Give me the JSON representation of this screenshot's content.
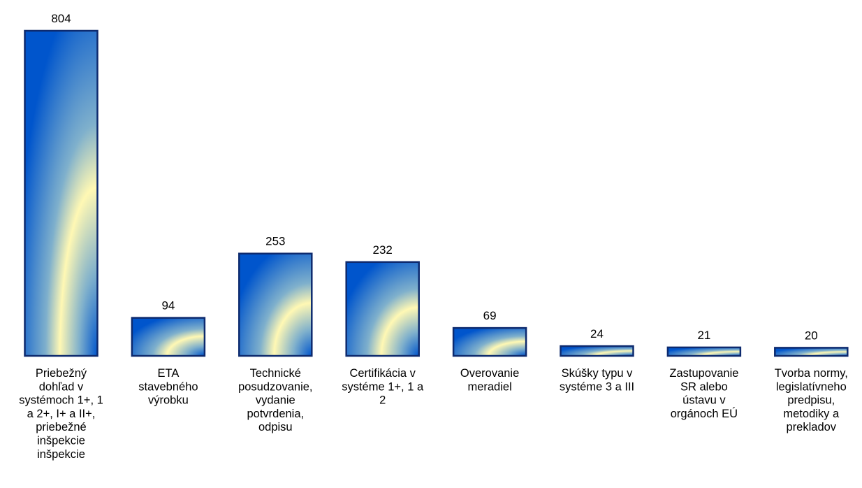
{
  "chart_data": {
    "type": "bar",
    "title": "",
    "xlabel": "",
    "ylabel": "",
    "ylim": [
      0,
      804
    ],
    "grid": false,
    "legend": "none",
    "categories": [
      [
        "Priebežný",
        "dohľad v",
        "systémoch 1+, 1",
        "a 2+, I+ a II+,",
        "priebežné",
        "inšpekcie",
        "inšpekcie"
      ],
      [
        "ETA",
        "stavebného",
        "výrobku"
      ],
      [
        "Technické",
        "posudzovanie,",
        "vydanie",
        "potvrdenia,",
        "odpisu"
      ],
      [
        "Certifikácia v",
        "systéme 1+, 1 a",
        "2"
      ],
      [
        "Overovanie",
        "meradiel"
      ],
      [
        "Skúšky typu v",
        "systéme 3 a III"
      ],
      [
        "Zastupovanie",
        "SR alebo",
        "ústavu v",
        "orgánoch EÚ"
      ],
      [
        "Tvorba normy,",
        "legislatívneho",
        "predpisu,",
        "metodiky a",
        "prekladov"
      ]
    ],
    "values": [
      804,
      94,
      253,
      232,
      69,
      24,
      21,
      20
    ],
    "data_labels": [
      "804",
      "94",
      "253",
      "232",
      "69",
      "24",
      "21",
      "20"
    ]
  },
  "colors": {
    "bar_outline": "#0d2a6e",
    "gradient_center": "#fff8b4",
    "gradient_mid": "#7fb0cc",
    "gradient_edge": "#0055cc",
    "text": "#000000"
  }
}
